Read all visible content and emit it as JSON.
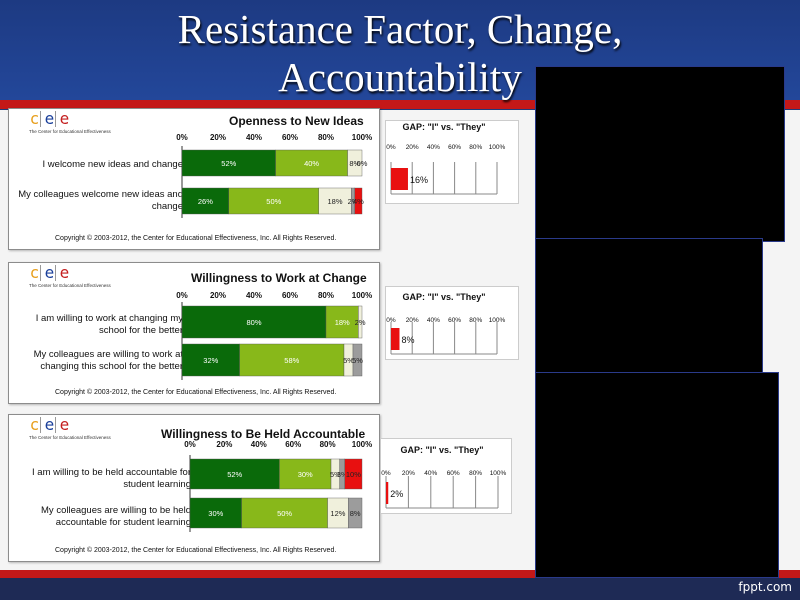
{
  "slide": {
    "title_line1": "Resistance Factor, Change,",
    "title_line2": "Accountability",
    "footer": "fppt.com"
  },
  "logo": {
    "letters": [
      "c",
      "e",
      "e"
    ],
    "colors": [
      "#e8a020",
      "#1a3f9a",
      "#c41e1e"
    ],
    "subtitle": "The Center for Educational Effectiveness"
  },
  "copyright": "Copyright © 2003-2012, the Center for Educational Effectiveness, Inc.  All Rights Reserved.",
  "axis_ticks": [
    "0%",
    "20%",
    "40%",
    "60%",
    "80%",
    "100%"
  ],
  "gap_title": "GAP: \"I\" vs. \"They\"",
  "segment_colors": [
    "#0a6a0a",
    "#88b81a",
    "#f0f0dc",
    "#9c9c9c",
    "#e81010"
  ],
  "chart_data": [
    {
      "type": "bar",
      "title": "Openness to New Ideas",
      "rows": [
        {
          "label": "I welcome new ideas and change",
          "segments": [
            52,
            40,
            8,
            0
          ],
          "labels": [
            "52%",
            "40%",
            "8%",
            "0%"
          ]
        },
        {
          "label": "My colleagues welcome new ideas and change",
          "segments": [
            26,
            50,
            18,
            2,
            4
          ],
          "labels": [
            "26%",
            "50%",
            "18%",
            "2%",
            "4%"
          ]
        }
      ],
      "gap": {
        "value": 16,
        "label": "16%"
      }
    },
    {
      "type": "bar",
      "title": "Willingness to Work at Change",
      "rows": [
        {
          "label": "I am willing to work at changing my school for the better",
          "segments": [
            80,
            18,
            2
          ],
          "labels": [
            "80%",
            "18%",
            "2%"
          ]
        },
        {
          "label": "My colleagues are willing to work at changing this school for the better",
          "segments": [
            32,
            58,
            5,
            5
          ],
          "labels": [
            "32%",
            "58%",
            "5%",
            "5%"
          ]
        }
      ],
      "gap": {
        "value": 8,
        "label": "8%"
      }
    },
    {
      "type": "bar",
      "title": "Willingness to Be Held Accountable",
      "rows": [
        {
          "label": "I am willing to be held accountable for student learning",
          "segments": [
            52,
            30,
            5,
            3,
            10
          ],
          "labels": [
            "52%",
            "30%",
            "5%",
            "3%",
            "10%"
          ]
        },
        {
          "label": "My colleagues are willing to be held accountable for student learning",
          "segments": [
            30,
            50,
            12,
            8
          ],
          "labels": [
            "30%",
            "50%",
            "12%",
            "8%"
          ]
        }
      ],
      "gap": {
        "value": 2,
        "label": "2%"
      }
    }
  ]
}
